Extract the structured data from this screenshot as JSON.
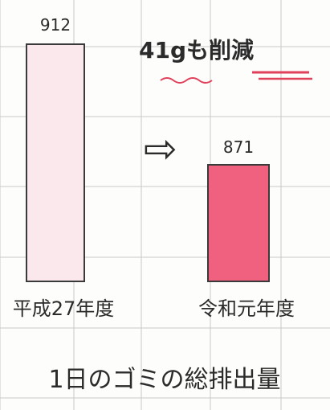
{
  "chart_data": {
    "type": "bar",
    "title": "1日のゴミの総排出量",
    "categories": [
      "平成27年度",
      "令和元年度"
    ],
    "values": [
      912,
      871
    ],
    "value_labels": [
      "912",
      "871"
    ],
    "ylim": [
      0,
      960
    ],
    "annotation": {
      "text": "41gも削減",
      "arrow": "⇨"
    },
    "colors": {
      "bar1_fill": "#fbe8ec",
      "bar2_fill": "#f0607f",
      "bar_outline": "#3a3a3a",
      "grid": "#c9c9c9",
      "underline_red": "#e0405a"
    }
  }
}
